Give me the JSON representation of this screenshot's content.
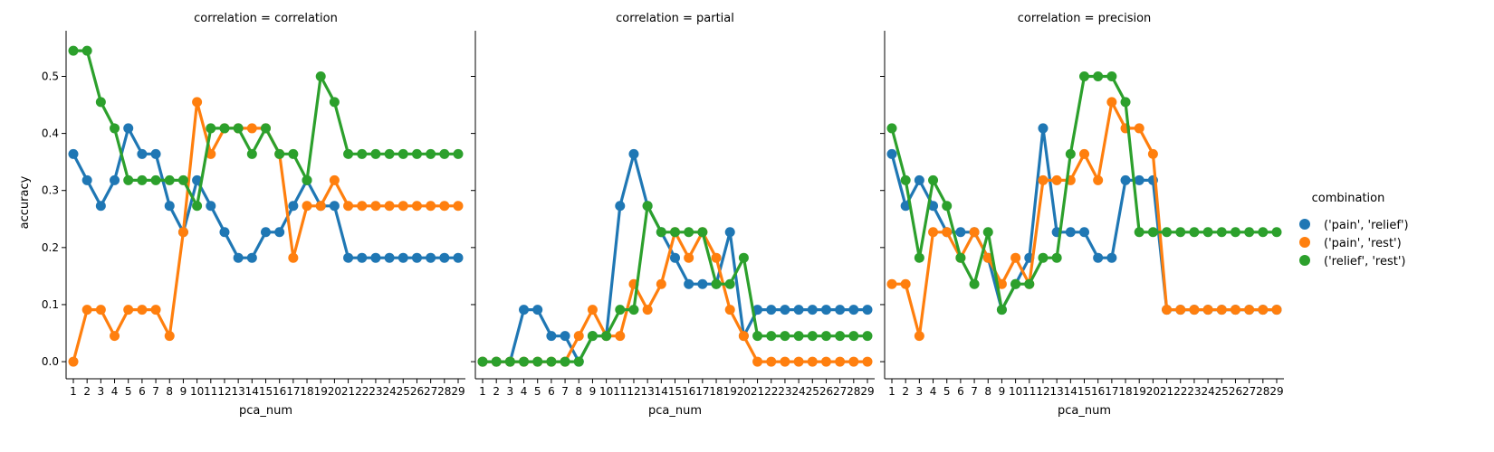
{
  "chart_data": {
    "type": "line",
    "facet_variable": "correlation",
    "xlabel": "pca_num",
    "ylabel": "accuracy",
    "ylim": [
      -0.03,
      0.58
    ],
    "yticks": [
      0.0,
      0.1,
      0.2,
      0.3,
      0.4,
      0.5
    ],
    "x": [
      1,
      2,
      3,
      4,
      5,
      6,
      7,
      8,
      9,
      10,
      11,
      12,
      13,
      14,
      15,
      16,
      17,
      18,
      19,
      20,
      21,
      22,
      23,
      24,
      25,
      26,
      27,
      28,
      29
    ],
    "legend": {
      "title": "combination",
      "placement": "right"
    },
    "colors": [
      "#1f77b4",
      "#ff7f0e",
      "#2ca02c"
    ],
    "panels": [
      {
        "title": "correlation = correlation",
        "series": [
          {
            "name": "('pain', 'relief')",
            "values": [
              0.364,
              0.318,
              0.273,
              0.318,
              0.409,
              0.364,
              0.364,
              0.273,
              0.227,
              0.318,
              0.273,
              0.227,
              0.182,
              0.182,
              0.227,
              0.227,
              0.273,
              0.318,
              0.273,
              0.273,
              0.182,
              0.182,
              0.182,
              0.182,
              0.182,
              0.182,
              0.182,
              0.182,
              0.182
            ]
          },
          {
            "name": "('pain', 'rest')",
            "values": [
              0.0,
              0.091,
              0.091,
              0.045,
              0.091,
              0.091,
              0.091,
              0.045,
              0.227,
              0.455,
              0.364,
              0.409,
              0.409,
              0.409,
              0.409,
              0.364,
              0.182,
              0.273,
              0.273,
              0.318,
              0.273,
              0.273,
              0.273,
              0.273,
              0.273,
              0.273,
              0.273,
              0.273,
              0.273
            ]
          },
          {
            "name": "('relief', 'rest')",
            "values": [
              0.545,
              0.545,
              0.455,
              0.409,
              0.318,
              0.318,
              0.318,
              0.318,
              0.318,
              0.273,
              0.409,
              0.409,
              0.409,
              0.364,
              0.409,
              0.364,
              0.364,
              0.318,
              0.5,
              0.455,
              0.364,
              0.364,
              0.364,
              0.364,
              0.364,
              0.364,
              0.364,
              0.364,
              0.364
            ]
          }
        ]
      },
      {
        "title": "correlation = partial",
        "series": [
          {
            "name": "('pain', 'relief')",
            "values": [
              0.0,
              0.0,
              0.0,
              0.091,
              0.091,
              0.045,
              0.045,
              0.0,
              0.045,
              0.045,
              0.273,
              0.364,
              0.273,
              0.227,
              0.182,
              0.136,
              0.136,
              0.136,
              0.227,
              0.045,
              0.091,
              0.091,
              0.091,
              0.091,
              0.091,
              0.091,
              0.091,
              0.091,
              0.091
            ]
          },
          {
            "name": "('pain', 'rest')",
            "values": [
              0.0,
              0.0,
              0.0,
              0.0,
              0.0,
              0.0,
              0.0,
              0.045,
              0.091,
              0.045,
              0.045,
              0.136,
              0.091,
              0.136,
              0.227,
              0.182,
              0.227,
              0.182,
              0.091,
              0.045,
              0.0,
              0.0,
              0.0,
              0.0,
              0.0,
              0.0,
              0.0,
              0.0,
              0.0
            ]
          },
          {
            "name": "('relief', 'rest')",
            "values": [
              0.0,
              0.0,
              0.0,
              0.0,
              0.0,
              0.0,
              0.0,
              0.0,
              0.045,
              0.045,
              0.091,
              0.091,
              0.273,
              0.227,
              0.227,
              0.227,
              0.227,
              0.136,
              0.136,
              0.182,
              0.045,
              0.045,
              0.045,
              0.045,
              0.045,
              0.045,
              0.045,
              0.045,
              0.045
            ]
          }
        ]
      },
      {
        "title": "correlation = precision",
        "series": [
          {
            "name": "('pain', 'relief')",
            "values": [
              0.364,
              0.273,
              0.318,
              0.273,
              0.227,
              0.227,
              0.227,
              0.182,
              0.091,
              0.136,
              0.182,
              0.409,
              0.227,
              0.227,
              0.227,
              0.182,
              0.182,
              0.318,
              0.318,
              0.318,
              0.091,
              0.091,
              0.091,
              0.091,
              0.091,
              0.091,
              0.091,
              0.091,
              0.091
            ]
          },
          {
            "name": "('pain', 'rest')",
            "values": [
              0.136,
              0.136,
              0.045,
              0.227,
              0.227,
              0.182,
              0.227,
              0.182,
              0.136,
              0.182,
              0.136,
              0.318,
              0.318,
              0.318,
              0.364,
              0.318,
              0.455,
              0.409,
              0.409,
              0.364,
              0.091,
              0.091,
              0.091,
              0.091,
              0.091,
              0.091,
              0.091,
              0.091,
              0.091
            ]
          },
          {
            "name": "('relief', 'rest')",
            "values": [
              0.409,
              0.318,
              0.182,
              0.318,
              0.273,
              0.182,
              0.136,
              0.227,
              0.091,
              0.136,
              0.136,
              0.182,
              0.182,
              0.364,
              0.5,
              0.5,
              0.5,
              0.455,
              0.227,
              0.227,
              0.227,
              0.227,
              0.227,
              0.227,
              0.227,
              0.227,
              0.227,
              0.227,
              0.227
            ]
          }
        ]
      }
    ]
  }
}
